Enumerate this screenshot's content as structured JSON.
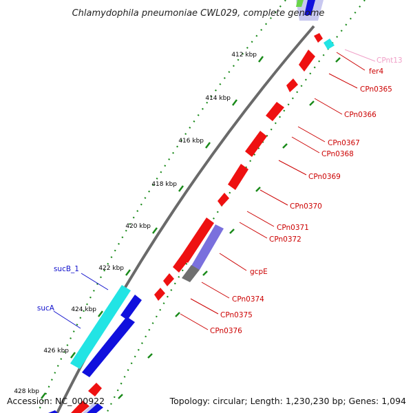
{
  "title": "Chlamydophila pneumoniae CWL029, complete genome",
  "accession": "Accession: NC_000922",
  "summary": "Topology: circular; Length: 1,230,230 bp; Genes: 1,094",
  "colors": {
    "backbone": "#7f7f7f",
    "ruler_dots": "#1a8a1a",
    "red_gene": "#ee1111",
    "red_label": "#cc0000",
    "blue_gene": "#1010dd",
    "blue_label": "#1010cc",
    "cyan_gene": "#22e4e4",
    "purple_gene": "#7a70dd",
    "gray_gene": "#6f6f6f",
    "pink_label": "#f0a0c8"
  },
  "ticks": [
    {
      "label": "412 kbp"
    },
    {
      "label": "414 kbp"
    },
    {
      "label": "416 kbp"
    },
    {
      "label": "418 kbp"
    },
    {
      "label": "420 kbp"
    },
    {
      "label": "422 kbp"
    },
    {
      "label": "424 kbp"
    },
    {
      "label": "426 kbp"
    },
    {
      "label": "428 kbp"
    }
  ],
  "labels": {
    "right": [
      "CPnt13",
      "fer4",
      "CPn0365",
      "CPn0366",
      "CPn0367",
      "CPn0368",
      "CPn0369",
      "CPn0370",
      "CPn0371",
      "CPn0372",
      "gcpE",
      "CPn0374",
      "CPn0375",
      "CPn0376"
    ],
    "left": [
      "sucB_1",
      "sucA"
    ]
  }
}
